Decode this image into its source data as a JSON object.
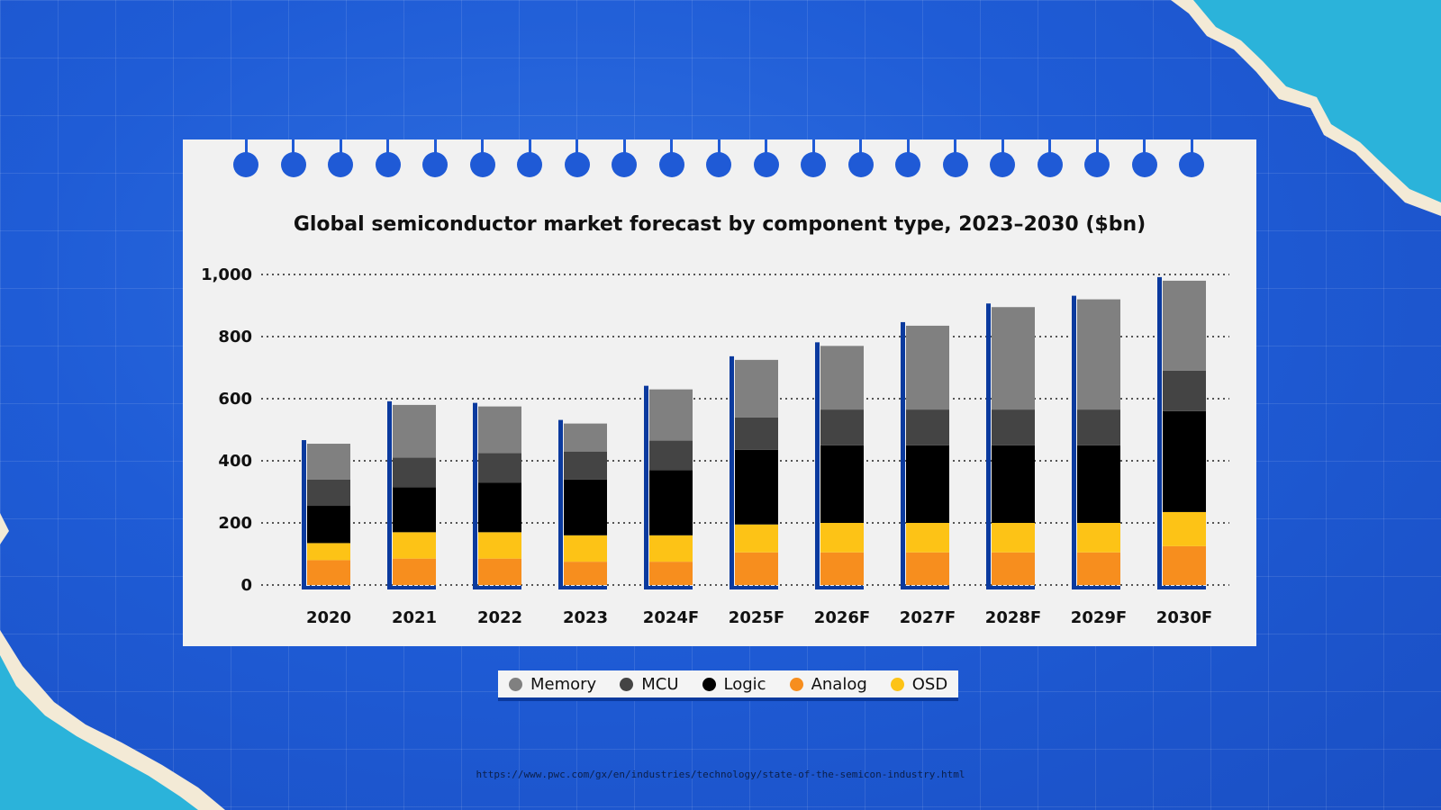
{
  "source_url": "https://www.pwc.com/gx/en/industries/technology/state-of-the-semicon-industry.html",
  "chart_data": {
    "type": "bar",
    "stacked": true,
    "title": "Global semiconductor market forecast by component type, 2023–2030 ($bn)",
    "xlabel": "",
    "ylabel": "",
    "ylim": [
      0,
      1000
    ],
    "yticks": [
      "0",
      "200",
      "400",
      "600",
      "800",
      "1,000"
    ],
    "grid": "dotted-horizontal",
    "legend_position": "bottom-center",
    "categories": [
      "2020",
      "2021",
      "2022",
      "2023",
      "2024F",
      "2025F",
      "2026F",
      "2027F",
      "2028F",
      "2029F",
      "2030F"
    ],
    "series": [
      {
        "name": "Analog",
        "color": "#f78e1e",
        "values": [
          80,
          85,
          85,
          75,
          75,
          105,
          105,
          105,
          105,
          105,
          125
        ]
      },
      {
        "name": "OSD",
        "color": "#fdc316",
        "values": [
          55,
          85,
          85,
          85,
          85,
          90,
          95,
          95,
          95,
          95,
          110
        ]
      },
      {
        "name": "Logic",
        "color": "#000000",
        "values": [
          120,
          145,
          160,
          180,
          210,
          240,
          250,
          250,
          250,
          250,
          325
        ]
      },
      {
        "name": "MCU",
        "color": "#444444",
        "values": [
          85,
          95,
          95,
          90,
          95,
          105,
          115,
          115,
          115,
          115,
          130
        ]
      },
      {
        "name": "Memory",
        "color": "#808080",
        "values": [
          115,
          170,
          150,
          90,
          165,
          185,
          205,
          270,
          330,
          355,
          290
        ]
      }
    ],
    "legend_order": [
      "Memory",
      "MCU",
      "Logic",
      "Analog",
      "OSD"
    ]
  }
}
